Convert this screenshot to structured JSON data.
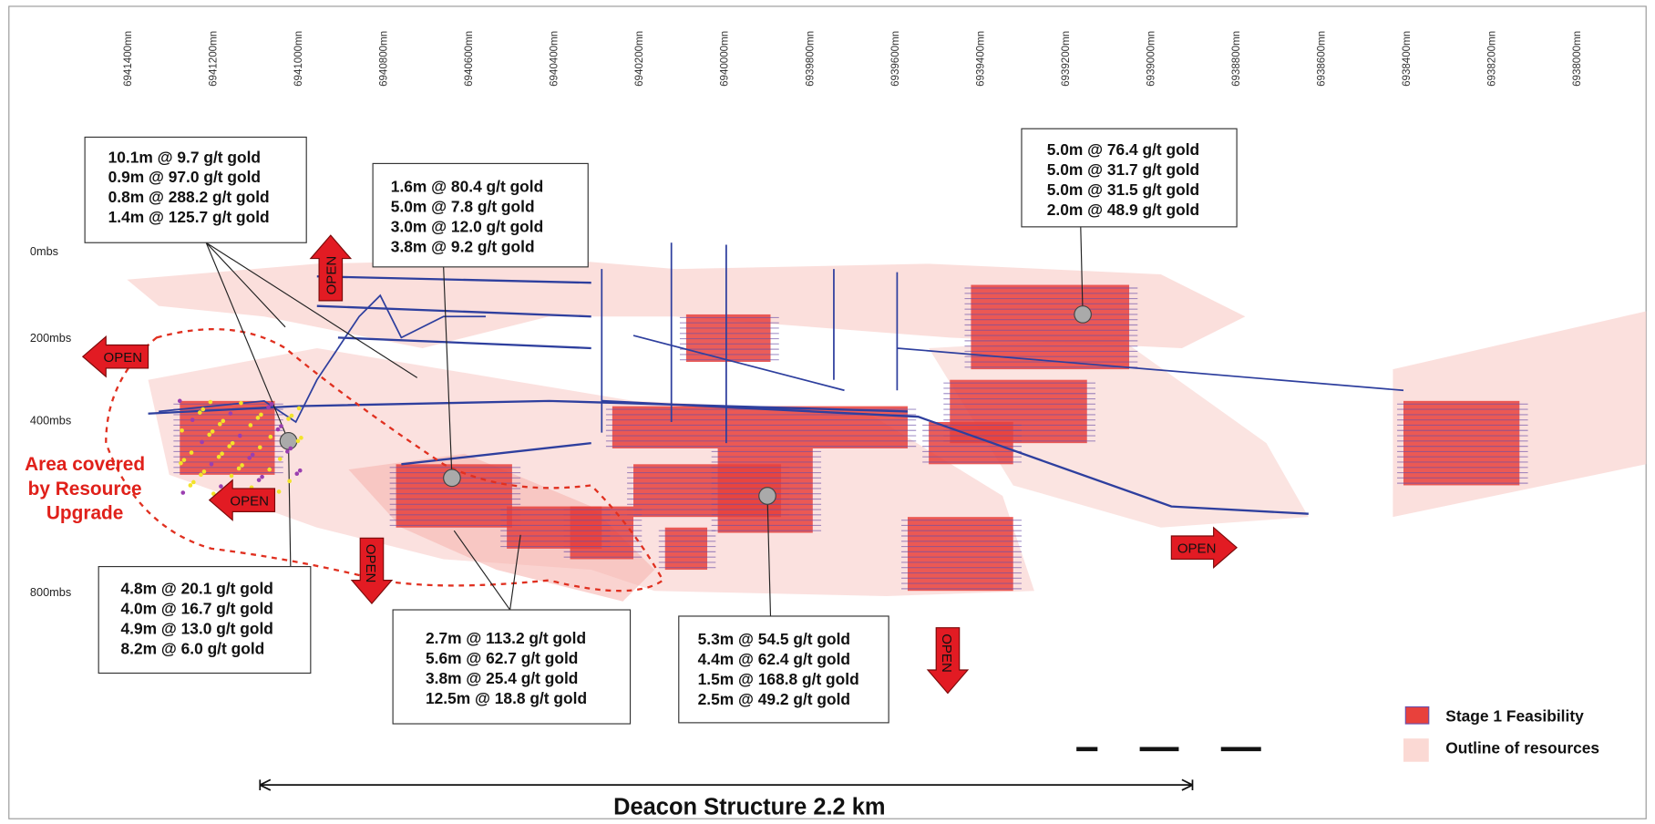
{
  "northings": [
    "6941400mn",
    "6941200mn",
    "6941000mn",
    "6940800mn",
    "6940600mn",
    "6940400mn",
    "6940200mn",
    "6940000mn",
    "6939800mn",
    "6939600mn",
    "6939400mn",
    "6939200mn",
    "6939000mn",
    "6938800mn",
    "6938600mn",
    "6938400mn",
    "6938200mn",
    "6938000mn"
  ],
  "depths": [
    "0mbs",
    "200mbs",
    "400mbs",
    "800mbs"
  ],
  "callouts": [
    {
      "lines": [
        "10.1m @ 9.7 g/t gold",
        "0.9m @ 97.0 g/t gold",
        "0.8m @ 288.2 g/t gold",
        "1.4m @ 125.7 g/t gold"
      ]
    },
    {
      "lines": [
        "1.6m @ 80.4 g/t gold",
        "5.0m @ 7.8 g/t gold",
        "3.0m @ 12.0 g/t gold",
        "3.8m @ 9.2 g/t gold"
      ]
    },
    {
      "lines": [
        "5.0m @ 76.4 g/t gold",
        "5.0m @ 31.7 g/t gold",
        "5.0m @ 31.5 g/t gold",
        "2.0m @ 48.9 g/t gold"
      ]
    },
    {
      "lines": [
        "4.8m @ 20.1 g/t gold",
        "4.0m @ 16.7 g/t gold",
        "4.9m @ 13.0 g/t gold",
        "8.2m @ 6.0 g/t gold"
      ]
    },
    {
      "lines": [
        "2.7m @ 113.2 g/t gold",
        "5.6m @ 62.7 g/t gold",
        "3.8m @ 25.4 g/t gold",
        "12.5m @ 18.8 g/t gold"
      ]
    },
    {
      "lines": [
        "5.3m @ 54.5 g/t gold",
        "4.4m @ 62.4 g/t gold",
        "1.5m @ 168.8 g/t gold",
        "2.5m @ 49.2 g/t gold"
      ]
    }
  ],
  "open_arrows": [
    "OPEN",
    "OPEN",
    "OPEN",
    "OPEN",
    "OPEN",
    "OPEN"
  ],
  "area_note": [
    "Area covered",
    "by Resource",
    "Upgrade"
  ],
  "legend": [
    {
      "label": "Stage 1 Feasibility"
    },
    {
      "label": "Outline of resources"
    }
  ],
  "scale_title": "Deacon Structure 2.2 km"
}
